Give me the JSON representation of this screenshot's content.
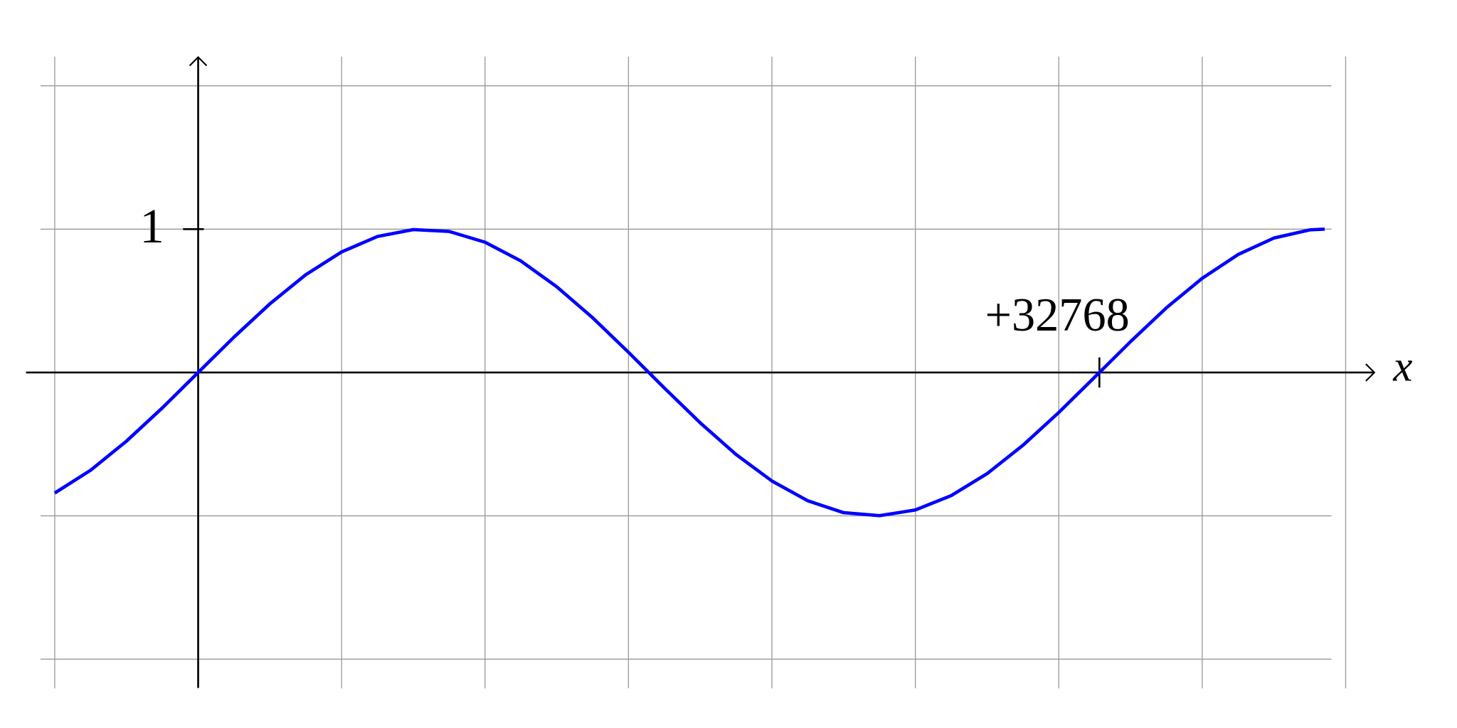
{
  "chart_data": {
    "type": "line",
    "x_label": "x",
    "xlim": [
      -1.2,
      8.2
    ],
    "ylim": [
      -2.2,
      2.2
    ],
    "xgrid": [
      -1,
      0,
      1,
      2,
      3,
      4,
      5,
      6,
      7,
      8
    ],
    "ygrid": [
      -2,
      -1,
      0,
      1,
      2
    ],
    "xticks": [
      {
        "value": 6.2832,
        "label": "+32768"
      }
    ],
    "yticks": [
      1
    ],
    "grid": true,
    "series": [
      {
        "color": "#0000ff",
        "x": [
          -1,
          -0.75,
          -0.5,
          -0.25,
          0,
          0.25,
          0.5,
          0.75,
          1,
          1.25,
          1.5,
          1.75,
          2,
          2.25,
          2.5,
          2.75,
          3,
          3.25,
          3.5,
          3.75,
          4,
          4.25,
          4.5,
          4.75,
          5,
          5.25,
          5.5,
          5.75,
          6,
          6.25,
          6.5,
          6.75,
          7,
          7.25,
          7.5,
          7.75,
          7.854
        ],
        "values": [
          -0.841,
          -0.682,
          -0.479,
          -0.247,
          0,
          0.247,
          0.479,
          0.682,
          0.841,
          0.949,
          0.997,
          0.984,
          0.909,
          0.778,
          0.598,
          0.382,
          0.141,
          -0.108,
          -0.351,
          -0.572,
          -0.757,
          -0.895,
          -0.978,
          -0.999,
          -0.959,
          -0.859,
          -0.706,
          -0.508,
          -0.279,
          -0.033,
          0.215,
          0.451,
          0.657,
          0.823,
          0.938,
          0.995,
          1
        ]
      }
    ]
  }
}
